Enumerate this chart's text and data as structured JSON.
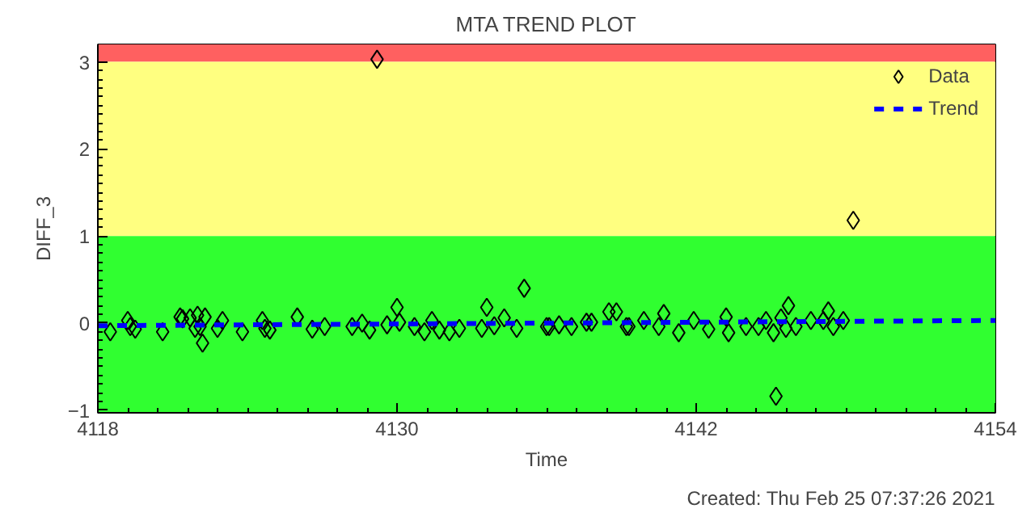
{
  "chart_data": {
    "type": "scatter",
    "title": "MTA TREND PLOT",
    "xlabel": "Time",
    "ylabel": "DIFF_3",
    "xlim": [
      4118,
      4154
    ],
    "xticks": [
      4118,
      4130,
      4142,
      4154
    ],
    "ylim": [
      -1.03,
      3.2
    ],
    "yticks": [
      -1,
      0,
      1,
      2,
      3
    ],
    "grid": false,
    "legend": "top right",
    "bands": [
      {
        "axis": "y",
        "from": 3,
        "to": 3.2,
        "color": "#ff6060"
      },
      {
        "axis": "y",
        "from": 1,
        "to": 3,
        "color": "#ffff80"
      },
      {
        "axis": "y",
        "from": -1.03,
        "to": 1,
        "color": "#30ff30"
      }
    ],
    "series": [
      {
        "name": "Data",
        "type": "scatter",
        "marker": "diamond",
        "color": "#000000",
        "x": [
          4118.5,
          4119.2,
          4119.3,
          4119.5,
          4120.6,
          4121.3,
          4121.4,
          4121.7,
          4122.0,
          4122.3,
          4121.9,
          4122.1,
          4122.2,
          4122.8,
          4123.0,
          4123.8,
          4124.6,
          4124.7,
          4124.9,
          4126.0,
          4126.6,
          4127.1,
          4128.2,
          4128.6,
          4128.9,
          4129.2,
          4129.6,
          4130.0,
          4130.1,
          4130.7,
          4131.1,
          4131.4,
          4131.7,
          4132.1,
          4132.5,
          4133.4,
          4133.6,
          4133.9,
          4134.3,
          4134.8,
          4135.1,
          4136.0,
          4136.1,
          4136.5,
          4137.0,
          4137.6,
          4137.8,
          4138.5,
          4138.8,
          4139.2,
          4139.3,
          4139.9,
          4140.5,
          4140.7,
          4141.3,
          4141.9,
          4142.5,
          4143.2,
          4143.3,
          4144.0,
          4144.5,
          4144.8,
          4145.1,
          4145.4,
          4145.6,
          4145.7,
          4146.0,
          4145.2,
          4146.6,
          4147.1,
          4147.3,
          4147.5,
          4147.9,
          4148.3
        ],
        "values": [
          -0.1,
          0.03,
          -0.04,
          -0.07,
          -0.1,
          0.07,
          0.05,
          0.06,
          0.09,
          0.07,
          -0.06,
          -0.04,
          -0.23,
          -0.06,
          0.03,
          -0.1,
          0.03,
          -0.06,
          -0.08,
          0.07,
          -0.07,
          -0.04,
          -0.04,
          0.0,
          -0.08,
          3.03,
          -0.02,
          0.18,
          0.01,
          -0.04,
          -0.1,
          0.03,
          -0.08,
          -0.1,
          -0.06,
          -0.06,
          0.18,
          -0.03,
          0.06,
          -0.06,
          0.4,
          -0.04,
          -0.04,
          -0.02,
          -0.04,
          0.01,
          0.01,
          0.13,
          0.13,
          -0.04,
          -0.04,
          0.03,
          -0.04,
          0.11,
          -0.11,
          0.03,
          -0.07,
          0.07,
          -0.11,
          -0.04,
          -0.04,
          0.03,
          -0.11,
          0.06,
          -0.06,
          0.2,
          -0.04,
          -0.84,
          0.03,
          0.03,
          0.14,
          -0.04,
          0.03,
          1.18
        ]
      },
      {
        "name": "Trend",
        "type": "line",
        "line_style": "dashed",
        "marker": "none",
        "color": "#0000ff",
        "x": [
          4118,
          4154
        ],
        "values": [
          -0.03,
          0.03
        ]
      }
    ],
    "annotations": [
      "Created: Thu Feb 25 07:37:26 2021"
    ]
  }
}
